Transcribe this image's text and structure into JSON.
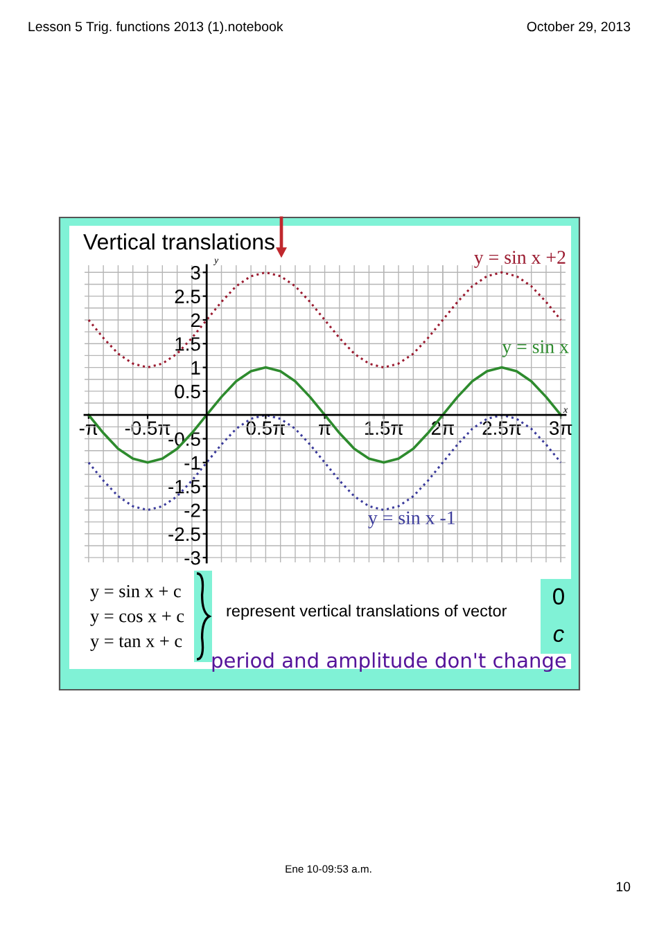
{
  "chart_data": {
    "type": "line",
    "title": "Vertical translations",
    "xlabel": "x",
    "ylabel": "y",
    "x": [
      -3.142,
      -2.749,
      -2.356,
      -1.963,
      -1.571,
      -1.178,
      -0.785,
      -0.393,
      0,
      0.393,
      0.785,
      1.178,
      1.571,
      1.963,
      2.356,
      2.749,
      3.142,
      3.534,
      3.927,
      4.32,
      4.712,
      5.105,
      5.498,
      5.89,
      6.283,
      6.676,
      7.069,
      7.461,
      7.854,
      8.247,
      8.639,
      9.032,
      9.425
    ],
    "series": [
      {
        "name": "y = sin x +2",
        "color": "#9b1b30",
        "line_style": "dotted",
        "values": [
          2,
          1.62,
          1.29,
          1.08,
          1,
          1.08,
          1.29,
          1.62,
          2,
          2.38,
          2.71,
          2.92,
          3,
          2.92,
          2.71,
          2.38,
          2,
          1.62,
          1.29,
          1.08,
          1,
          1.08,
          1.29,
          1.62,
          2,
          2.38,
          2.71,
          2.92,
          3,
          2.92,
          2.71,
          2.38,
          2
        ]
      },
      {
        "name": "y = sin x",
        "color": "#2e8b2e",
        "line_style": "solid",
        "values": [
          0,
          -0.38,
          -0.71,
          -0.92,
          -1,
          -0.92,
          -0.71,
          -0.38,
          0,
          0.38,
          0.71,
          0.92,
          1,
          0.92,
          0.71,
          0.38,
          0,
          -0.38,
          -0.71,
          -0.92,
          -1,
          -0.92,
          -0.71,
          -0.38,
          0,
          0.38,
          0.71,
          0.92,
          1,
          0.92,
          0.71,
          0.38,
          0
        ]
      },
      {
        "name": "y = sin x -1",
        "color": "#3b3b9b",
        "line_style": "dotted",
        "values": [
          -1,
          -1.38,
          -1.71,
          -1.92,
          -2,
          -1.92,
          -1.71,
          -1.38,
          -1,
          -0.62,
          -0.29,
          -0.08,
          0,
          -0.08,
          -0.29,
          -0.62,
          -1,
          -1.38,
          -1.71,
          -1.92,
          -2,
          -1.92,
          -1.71,
          -1.38,
          -1,
          -0.62,
          -0.29,
          -0.08,
          0,
          -0.08,
          -0.29,
          -0.62,
          -1
        ]
      }
    ],
    "xlim": [
      -3.25,
      9.55
    ],
    "ylim": [
      -3.1,
      3.15
    ],
    "xticks": [
      {
        "value": -3.142,
        "label": "-π"
      },
      {
        "value": -1.571,
        "label": "-0.5π"
      },
      {
        "value": 1.571,
        "label": "0.5π"
      },
      {
        "value": 3.142,
        "label": "π"
      },
      {
        "value": 4.712,
        "label": "1.5π"
      },
      {
        "value": 6.283,
        "label": "2π"
      },
      {
        "value": 7.854,
        "label": "2.5π"
      },
      {
        "value": 9.425,
        "label": "3π"
      }
    ],
    "yticks": [
      -3,
      -2.5,
      -2,
      -1.5,
      -1,
      -0.5,
      0.5,
      1,
      1.5,
      2,
      2.5,
      3
    ],
    "grid": true,
    "annotations": [
      "Lesson 5 Trig. functions 2013 (1).notebook",
      "October 29, 2013",
      "y = sin x + c",
      "y = cos x + c",
      "y = tan x + c",
      "represent vertical translations of vector",
      "0",
      "c",
      "period and amplitude don't change",
      "Ene 10-09:53 a.m.",
      "10"
    ]
  }
}
